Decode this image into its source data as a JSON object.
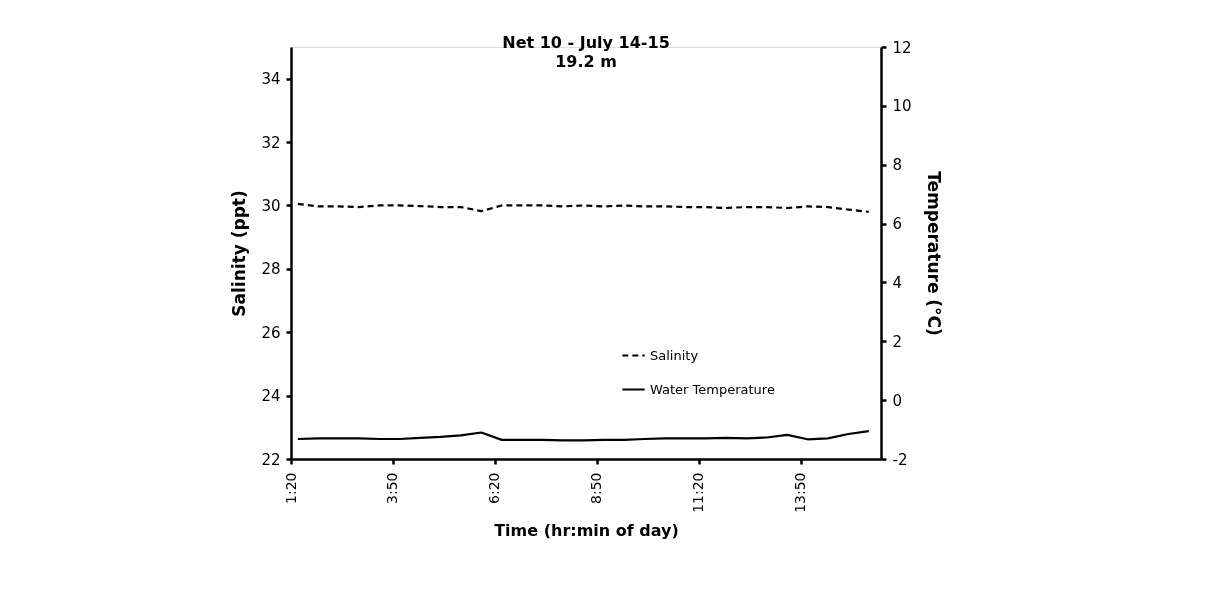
{
  "chart_data": {
    "type": "line",
    "title": "Net 10 - July 14-15",
    "subtitle": "19.2 m",
    "xlabel": "Time (hr:min of day)",
    "ylabel": "Salinity (ppt)",
    "y2label": "Temperature (°C)",
    "x": [
      1.5,
      2,
      2.5,
      3,
      3.5,
      4,
      4.5,
      5,
      5.5,
      6,
      6.5,
      7,
      7.5,
      8,
      8.5,
      9,
      9.5,
      10,
      10.5,
      11,
      11.5,
      12,
      12.5,
      13,
      13.5,
      14,
      14.5,
      15,
      15.5
    ],
    "series": [
      {
        "name": "Salinity",
        "color": "#000000",
        "line_style": "dashed",
        "values": [
          30.05,
          29.97,
          29.97,
          29.95,
          30.0,
          30.0,
          29.98,
          29.95,
          29.95,
          29.82,
          30.0,
          30.0,
          30.0,
          29.97,
          30.0,
          29.97,
          30.0,
          29.97,
          29.97,
          29.95,
          29.95,
          29.92,
          29.95,
          29.95,
          29.92,
          29.97,
          29.95,
          29.87,
          29.8
        ]
      },
      {
        "name": "Water Temperature",
        "color": "#000000",
        "line_style": "solid",
        "axis": "y2",
        "values": [
          -1.32,
          -1.3,
          -1.3,
          -1.3,
          -1.32,
          -1.32,
          -1.28,
          -1.25,
          -1.2,
          -1.1,
          -1.35,
          -1.35,
          -1.35,
          -1.37,
          -1.37,
          -1.35,
          -1.35,
          -1.32,
          -1.3,
          -1.3,
          -1.3,
          -1.28,
          -1.3,
          -1.27,
          -1.18,
          -1.33,
          -1.3,
          -1.15,
          -1.05
        ]
      }
    ],
    "xlim": [
      1.3333,
      15.8
    ],
    "xticks": [
      {
        "value": 1.3333,
        "label": "1:20"
      },
      {
        "value": 3.8333,
        "label": "3:50"
      },
      {
        "value": 6.3333,
        "label": "6:20"
      },
      {
        "value": 8.8333,
        "label": "8:50"
      },
      {
        "value": 11.3333,
        "label": "11:20"
      },
      {
        "value": 13.8333,
        "label": "13:50"
      }
    ],
    "ylim": [
      22,
      35
    ],
    "yticks": [
      22,
      24,
      26,
      28,
      30,
      32,
      34
    ],
    "y2lim": [
      -2,
      12
    ],
    "y2ticks": [
      -2,
      0,
      2,
      4,
      6,
      8,
      10,
      12
    ],
    "grid": false,
    "legend": "bottom right",
    "marker": "none"
  }
}
